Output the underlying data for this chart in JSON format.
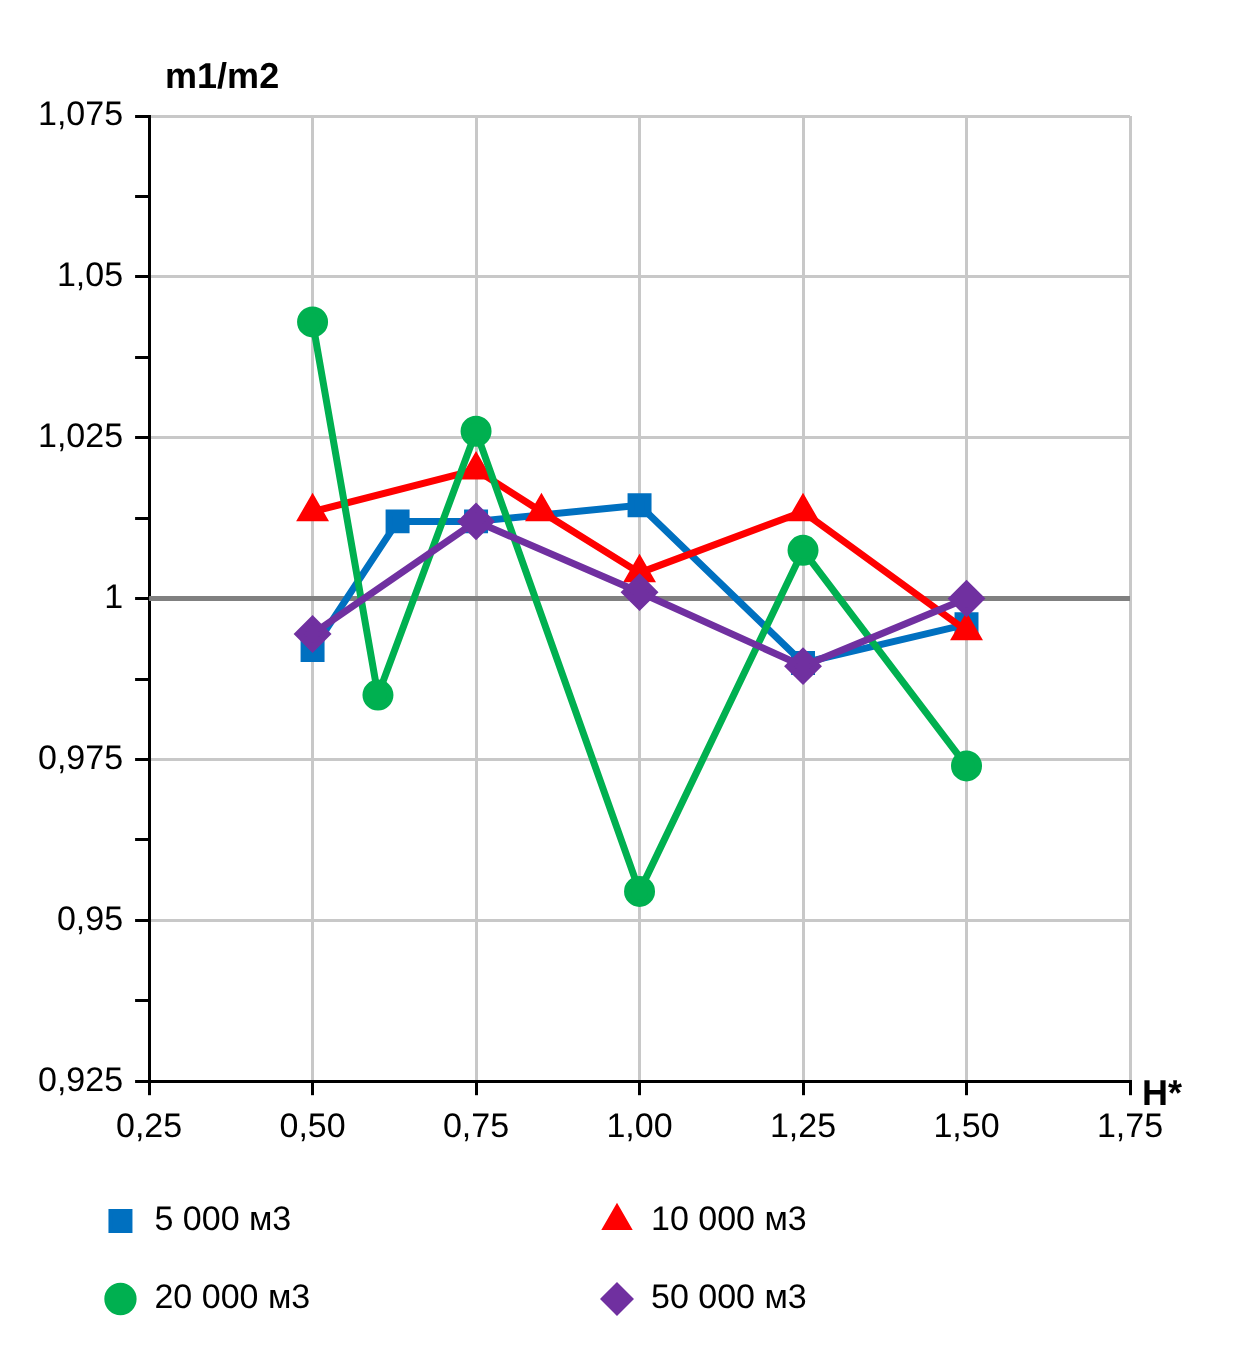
{
  "chart_data": {
    "type": "line",
    "ylabel": "m1/m2",
    "xlabel": "H*",
    "xlim": [
      0.25,
      1.75
    ],
    "xticks": [
      {
        "value": 0.25,
        "label": "0,25"
      },
      {
        "value": 0.5,
        "label": "0,50"
      },
      {
        "value": 0.75,
        "label": "0,75"
      },
      {
        "value": 1,
        "label": "1,00"
      },
      {
        "value": 1.25,
        "label": "1,25"
      },
      {
        "value": 1.5,
        "label": "1,50"
      },
      {
        "value": 1.75,
        "label": "1,75"
      }
    ],
    "ylim": [
      0.925,
      1.075
    ],
    "yticks": [
      {
        "value": 0.925,
        "label": "0,925"
      },
      {
        "value": 0.9375,
        "label": null
      },
      {
        "value": 0.95,
        "label": "0,95"
      },
      {
        "value": 0.9625,
        "label": null
      },
      {
        "value": 0.975,
        "label": "0,975"
      },
      {
        "value": 0.9875,
        "label": null
      },
      1,
      {
        "value": 1.0125,
        "label": null
      },
      {
        "value": 1.025,
        "label": "1,025"
      },
      {
        "value": 1.0375,
        "label": null
      },
      {
        "value": 1.05,
        "label": "1,05"
      },
      {
        "value": 1.0625,
        "label": null
      },
      {
        "value": 1.075,
        "label": "1,075"
      }
    ],
    "grid": true,
    "legend": "bottom",
    "line_style": "solid",
    "ref_lines": [
      {
        "axis": "y",
        "value": 1,
        "color": "#808080"
      }
    ],
    "series": [
      {
        "name": "5 000 м3",
        "color": "#0070c0",
        "marker": "square",
        "x": [
          0.5,
          0.63,
          0.75,
          1.0,
          1.25,
          1.5
        ],
        "values": [
          0.992,
          1.012,
          1.012,
          1.0145,
          0.99,
          0.996
        ]
      },
      {
        "name": "10 000 м3",
        "color": "#ff0000",
        "marker": "triangle",
        "x": [
          0.5,
          0.75,
          0.85,
          1.0,
          1.25,
          1.5
        ],
        "values": [
          1.0135,
          1.02,
          1.0135,
          1.004,
          1.0135,
          0.995
        ]
      },
      {
        "name": "20 000 м3",
        "color": "#00b050",
        "marker": "circle",
        "x": [
          0.5,
          0.6,
          0.75,
          1.0,
          1.25,
          1.5
        ],
        "values": [
          1.043,
          0.985,
          1.026,
          0.9545,
          1.0075,
          0.974
        ]
      },
      {
        "name": "50 000 м3",
        "color": "#7030a0",
        "marker": "diamond",
        "x": [
          0.5,
          0.75,
          1.0,
          1.25,
          1.5
        ],
        "values": [
          0.9945,
          1.012,
          1.001,
          0.9895,
          1.0
        ]
      }
    ]
  }
}
